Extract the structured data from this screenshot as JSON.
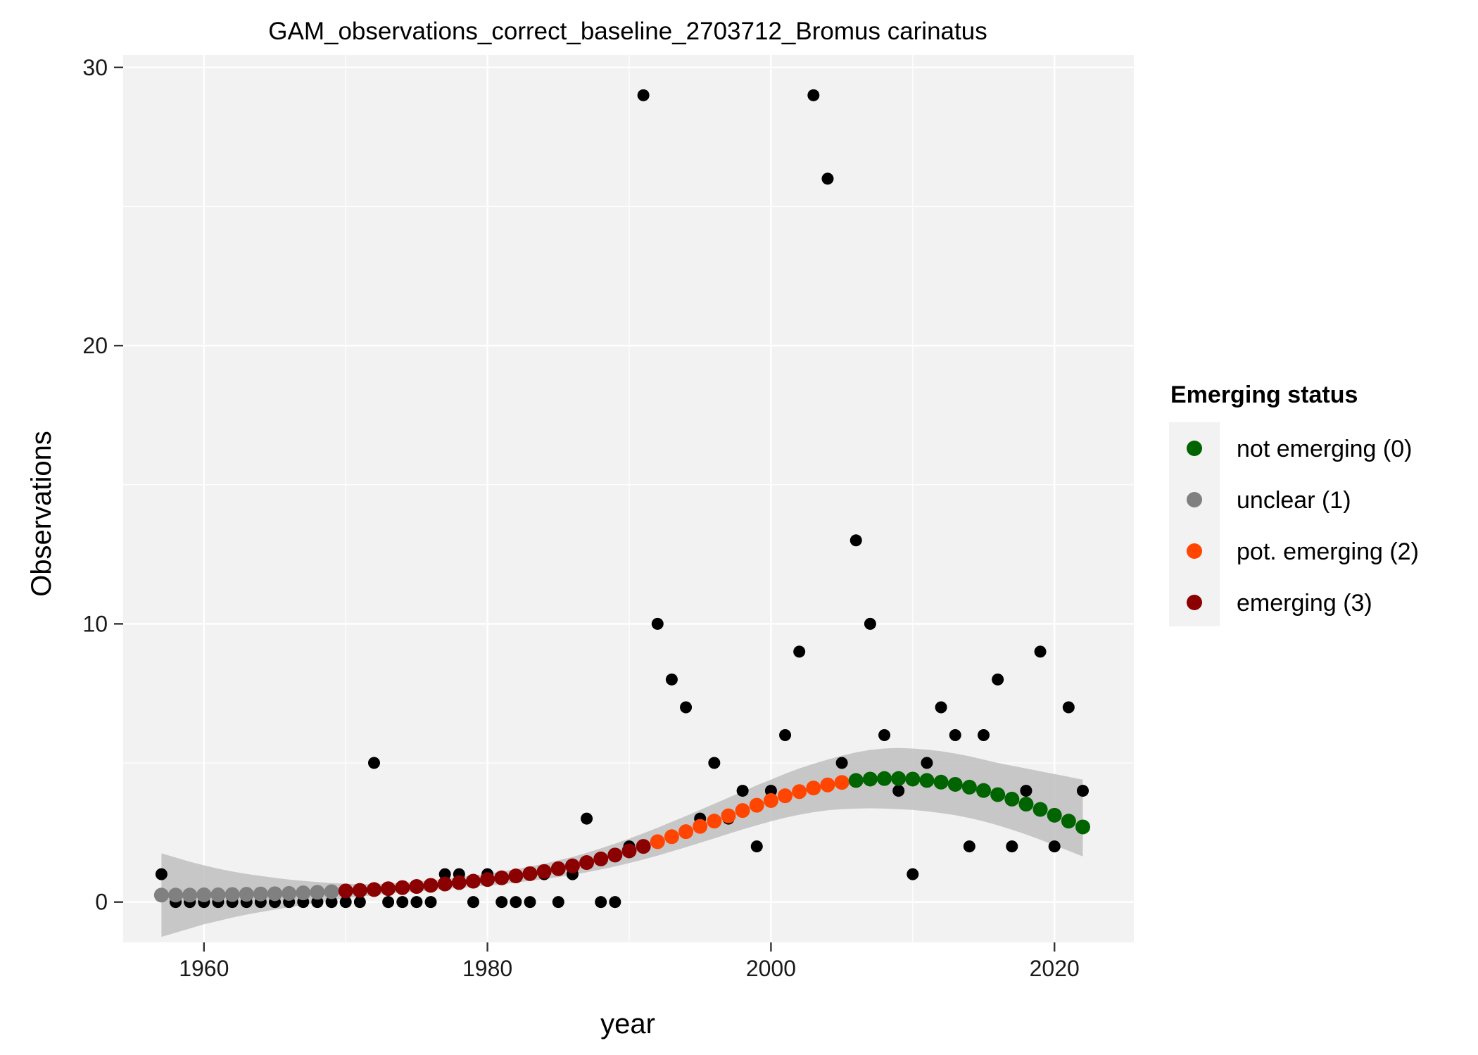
{
  "chart_data": {
    "type": "scatter",
    "title": "GAM_observations_correct_baseline_2703712_Bromus carinatus",
    "xlabel": "year",
    "ylabel": "Observations",
    "xlim": [
      1954.3,
      2025.6
    ],
    "ylim": [
      -1.45,
      30.45
    ],
    "xticks": [
      1960,
      1980,
      2000,
      2020
    ],
    "yticks": [
      0,
      10,
      20,
      30
    ],
    "grid": true,
    "legend": {
      "title": "Emerging status",
      "placement": "right",
      "entries": [
        {
          "label": "not emerging (0)",
          "color": "#006400"
        },
        {
          "label": "unclear (1)",
          "color": "#808080"
        },
        {
          "label": "pot. emerging (2)",
          "color": "#ff4500"
        },
        {
          "label": "emerging (3)",
          "color": "#8b0000"
        }
      ]
    },
    "colors": {
      "panel": "#f2f2f2",
      "grid": "#ffffff",
      "ribbon": "#bfbfbf",
      "observed_point": "#000000"
    },
    "observed": {
      "x": [
        1957,
        1958,
        1959,
        1960,
        1961,
        1962,
        1963,
        1964,
        1965,
        1966,
        1967,
        1968,
        1969,
        1970,
        1971,
        1972,
        1973,
        1974,
        1975,
        1976,
        1977,
        1978,
        1979,
        1980,
        1981,
        1982,
        1983,
        1984,
        1985,
        1986,
        1987,
        1988,
        1989,
        1990,
        1991,
        1992,
        1993,
        1994,
        1995,
        1996,
        1997,
        1998,
        1999,
        2000,
        2001,
        2002,
        2003,
        2004,
        2005,
        2006,
        2007,
        2008,
        2009,
        2010,
        2011,
        2012,
        2013,
        2014,
        2015,
        2016,
        2017,
        2018,
        2019,
        2020,
        2021,
        2022
      ],
      "y": [
        1,
        0,
        0,
        0,
        0,
        0,
        0,
        0,
        0,
        0,
        0,
        0,
        0,
        0,
        0,
        5,
        0,
        0,
        0,
        0,
        1,
        1,
        0,
        1,
        0,
        0,
        0,
        1,
        0,
        1,
        3,
        0,
        0,
        2,
        29,
        10,
        8,
        7,
        3,
        5,
        3,
        4,
        2,
        4,
        6,
        9,
        29,
        26,
        5,
        13,
        10,
        6,
        4,
        1,
        5,
        7,
        6,
        2,
        6,
        8,
        2,
        4,
        9,
        2,
        7,
        4
      ]
    },
    "fitted": {
      "x": [
        1957,
        1958,
        1959,
        1960,
        1961,
        1962,
        1963,
        1964,
        1965,
        1966,
        1967,
        1968,
        1969,
        1970,
        1971,
        1972,
        1973,
        1974,
        1975,
        1976,
        1977,
        1978,
        1979,
        1980,
        1981,
        1982,
        1983,
        1984,
        1985,
        1986,
        1987,
        1988,
        1989,
        1990,
        1991,
        1992,
        1993,
        1994,
        1995,
        1996,
        1997,
        1998,
        1999,
        2000,
        2001,
        2002,
        2003,
        2004,
        2005,
        2006,
        2007,
        2008,
        2009,
        2010,
        2011,
        2012,
        2013,
        2014,
        2015,
        2016,
        2017,
        2018,
        2019,
        2020,
        2021,
        2022
      ],
      "y": [
        0.25,
        0.25,
        0.25,
        0.26,
        0.26,
        0.27,
        0.28,
        0.29,
        0.3,
        0.31,
        0.33,
        0.35,
        0.37,
        0.4,
        0.42,
        0.45,
        0.48,
        0.52,
        0.56,
        0.6,
        0.65,
        0.7,
        0.75,
        0.81,
        0.87,
        0.94,
        1.02,
        1.1,
        1.2,
        1.3,
        1.42,
        1.55,
        1.69,
        1.84,
        2.0,
        2.17,
        2.35,
        2.53,
        2.72,
        2.91,
        3.1,
        3.29,
        3.48,
        3.65,
        3.82,
        3.97,
        4.1,
        4.21,
        4.3,
        4.37,
        4.42,
        4.44,
        4.44,
        4.42,
        4.37,
        4.31,
        4.23,
        4.13,
        4.01,
        3.86,
        3.7,
        3.52,
        3.33,
        3.12,
        2.91,
        2.7
      ],
      "status": [
        1,
        1,
        1,
        1,
        1,
        1,
        1,
        1,
        1,
        1,
        1,
        1,
        1,
        3,
        3,
        3,
        3,
        3,
        3,
        3,
        3,
        3,
        3,
        3,
        3,
        3,
        3,
        3,
        3,
        3,
        3,
        3,
        3,
        3,
        3,
        2,
        2,
        2,
        2,
        2,
        2,
        2,
        2,
        2,
        2,
        2,
        2,
        2,
        2,
        0,
        0,
        0,
        0,
        0,
        0,
        0,
        0,
        0,
        0,
        0,
        0,
        0,
        0,
        0,
        0,
        0
      ],
      "lower": [
        -1.25,
        -1.1,
        -0.95,
        -0.8,
        -0.68,
        -0.56,
        -0.45,
        -0.36,
        -0.27,
        -0.19,
        -0.1,
        -0.02,
        0.06,
        0.14,
        0.2,
        0.25,
        0.3,
        0.35,
        0.38,
        0.42,
        0.47,
        0.5,
        0.55,
        0.6,
        0.64,
        0.7,
        0.76,
        0.83,
        0.9,
        0.98,
        1.07,
        1.17,
        1.28,
        1.4,
        1.53,
        1.67,
        1.82,
        1.97,
        2.13,
        2.29,
        2.45,
        2.61,
        2.76,
        2.9,
        3.03,
        3.14,
        3.23,
        3.3,
        3.34,
        3.36,
        3.37,
        3.36,
        3.34,
        3.31,
        3.26,
        3.2,
        3.12,
        3.02,
        2.9,
        2.76,
        2.6,
        2.43,
        2.24,
        2.04,
        1.84,
        1.64
      ],
      "upper": [
        1.75,
        1.6,
        1.45,
        1.32,
        1.2,
        1.1,
        1.01,
        0.94,
        0.87,
        0.81,
        0.76,
        0.72,
        0.68,
        0.66,
        0.64,
        0.65,
        0.66,
        0.69,
        0.74,
        0.78,
        0.83,
        0.9,
        0.95,
        1.02,
        1.1,
        1.18,
        1.28,
        1.37,
        1.5,
        1.62,
        1.77,
        1.93,
        2.1,
        2.28,
        2.47,
        2.67,
        2.88,
        3.09,
        3.31,
        3.53,
        3.75,
        3.97,
        4.2,
        4.4,
        4.61,
        4.8,
        4.97,
        5.12,
        5.26,
        5.38,
        5.47,
        5.52,
        5.54,
        5.52,
        5.48,
        5.42,
        5.34,
        5.24,
        5.12,
        5.0,
        4.9,
        4.8,
        4.7,
        4.6,
        4.5,
        4.4
      ]
    }
  }
}
